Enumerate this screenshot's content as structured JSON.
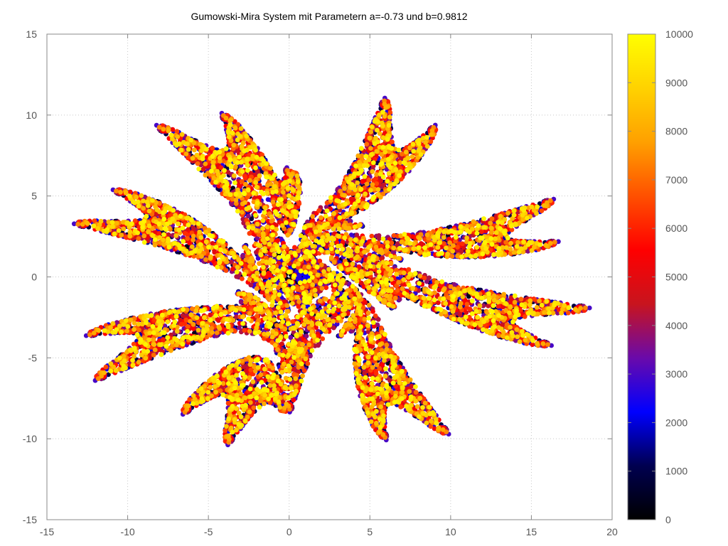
{
  "chart_data": {
    "type": "scatter",
    "title": "Gumowski-Mira System mit Parametern a=-0.73 und b=0.9812",
    "xlabel": "",
    "ylabel": "",
    "xlim": [
      -15,
      20
    ],
    "ylim": [
      -15,
      15
    ],
    "x_ticks": [
      -15,
      -10,
      -5,
      0,
      5,
      10,
      15,
      20
    ],
    "x_tick_labels": [
      "-15",
      "-10",
      "-5",
      "0",
      "5",
      "10",
      "15",
      "20"
    ],
    "y_ticks": [
      -15,
      -10,
      -5,
      0,
      5,
      10,
      15
    ],
    "y_tick_labels": [
      "-15",
      "-10",
      "-5",
      "0",
      "5",
      "10",
      "15"
    ],
    "grid": true,
    "point_count": 10000,
    "color_by": "iteration index",
    "attractor": {
      "a": -0.73,
      "b": 0.9812
    },
    "colorbar": {
      "min": 0,
      "max": 10000,
      "ticks": [
        0,
        1000,
        2000,
        3000,
        4000,
        5000,
        6000,
        7000,
        8000,
        9000,
        10000
      ],
      "tick_labels": [
        "0",
        "1000",
        "2000",
        "3000",
        "4000",
        "5000",
        "6000",
        "7000",
        "8000",
        "9000",
        "10000"
      ],
      "colormap": [
        "#000000",
        "#000050",
        "#0000ff",
        "#6a0aaa",
        "#c8141e",
        "#ff0000",
        "#ff5000",
        "#ffa000",
        "#ffd200",
        "#ffff00"
      ]
    }
  }
}
